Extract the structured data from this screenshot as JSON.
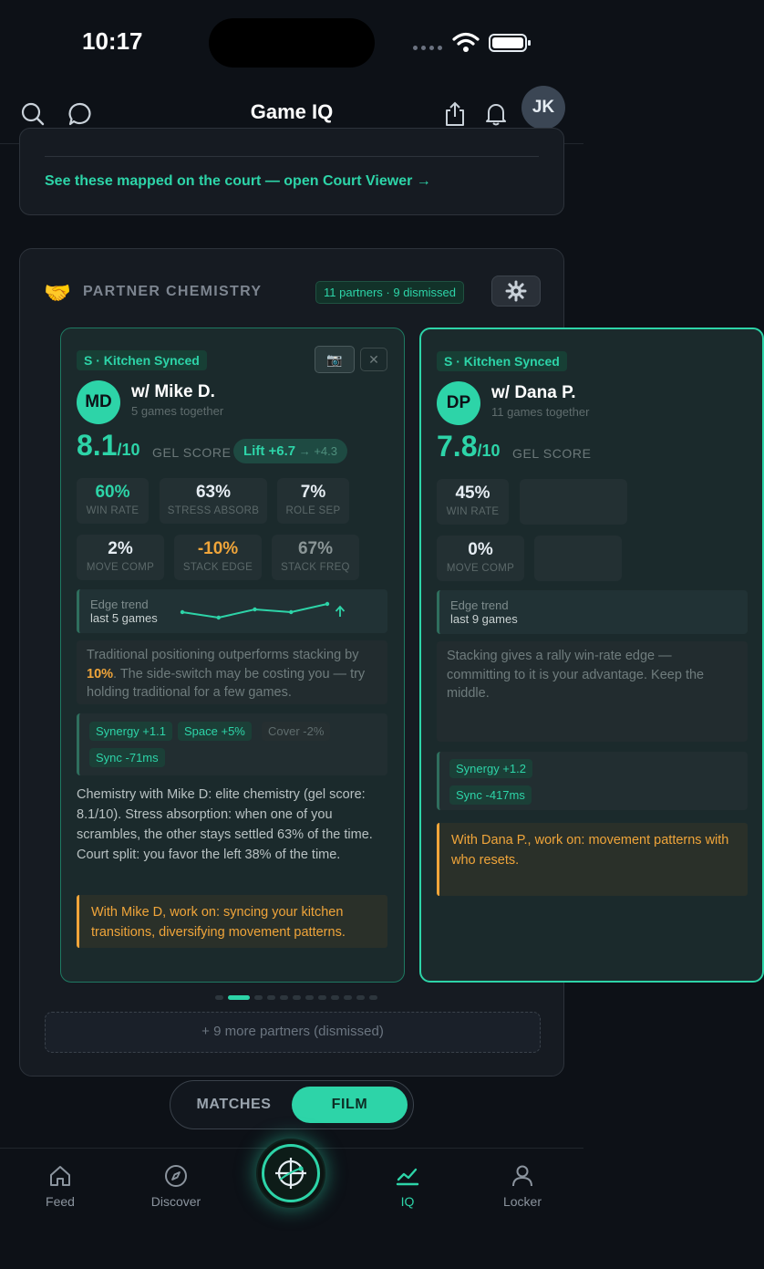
{
  "status": {
    "time": "10:17"
  },
  "header": {
    "title": "Game IQ",
    "avatar_initials": "JK"
  },
  "court_viewer": {
    "link": "See these mapped on the court — open Court Viewer →"
  },
  "chemistry": {
    "emoji": "🤝",
    "title": "PARTNER CHEMISTRY",
    "pill": "11 partners · 9 dismissed",
    "gear": "⚙",
    "partners": [
      {
        "tier": "S · Kitchen Synced",
        "initials": "MD",
        "name": "w/ Mike D.",
        "games": "5 games together",
        "score": "8.1",
        "score_den": "/10",
        "gel_label": "GEL SCORE",
        "lift": "Lift +6.7",
        "lift_sub": " → +4.3",
        "stats": [
          {
            "value": "60%",
            "label": "WIN RATE"
          },
          {
            "value": "63%",
            "label": "STRESS ABSORB"
          },
          {
            "value": "7%",
            "label": "ROLE SEP"
          },
          {
            "value": "2%",
            "label": "MOVE COMP"
          },
          {
            "value": "-10%",
            "label": "STACK EDGE"
          },
          {
            "value": "67%",
            "label": "STACK FREQ"
          }
        ],
        "trend_title": "Edge trend",
        "trend_sub": "last 5 games",
        "trend_values": [
          3,
          1,
          4,
          3,
          6
        ],
        "insight_pre": "Traditional positioning outperforms stacking by ",
        "insight_hl": "10%",
        "insight_post": ". The side-switch may be costing you — try holding traditional for a few games.",
        "tags": [
          "Synergy +1.1",
          "Space +5%",
          "Cover -2%",
          "Sync -71ms"
        ],
        "summary": "Chemistry with Mike D:   elite chemistry (gel score: 8.1/10). Stress absorption: when one of you scrambles, the other stays settled 63% of the time. Court split: you favor the left 38% of the time.",
        "work_on": "With Mike D,   work on: syncing your kitchen transitions, diversifying movement patterns."
      },
      {
        "tier": "S · Kitchen Synced",
        "initials": "DP",
        "name": "w/ Dana P.",
        "games": "11 games together",
        "score": "7.8",
        "score_den": "/10",
        "gel_label": "GEL SCORE",
        "stats": [
          {
            "value": "45%",
            "label": "WIN RATE"
          },
          {
            "value": "0%",
            "label": "MOVE COMP"
          }
        ],
        "trend_title": "Edge trend",
        "trend_sub": "last 9 games",
        "insight": "Stacking gives a rally win-rate edge — committing to it is your advantage. Keep the middle.",
        "tags": [
          "Synergy +1.2",
          "Sync -417ms"
        ],
        "work_on": "With Dana P., work on: movement patterns with who resets."
      }
    ],
    "page_count": 12,
    "active_page": 1,
    "more_button": "+ 9 more partners (dismissed)"
  },
  "segment": {
    "matches": "MATCHES",
    "film": "FILM",
    "active": "film"
  },
  "tabbar": {
    "items": [
      {
        "label": "Feed",
        "icon": "home-icon"
      },
      {
        "label": "Discover",
        "icon": "compass-icon"
      },
      {
        "label": "IQ",
        "icon": "chart-line-icon",
        "active": true
      },
      {
        "label": "Locker",
        "icon": "person-icon"
      }
    ],
    "center_icon": "crosshair-ball-icon"
  },
  "colors": {
    "accent": "#2dd4a8",
    "warning": "#f0a53a",
    "background": "#0d1117"
  }
}
